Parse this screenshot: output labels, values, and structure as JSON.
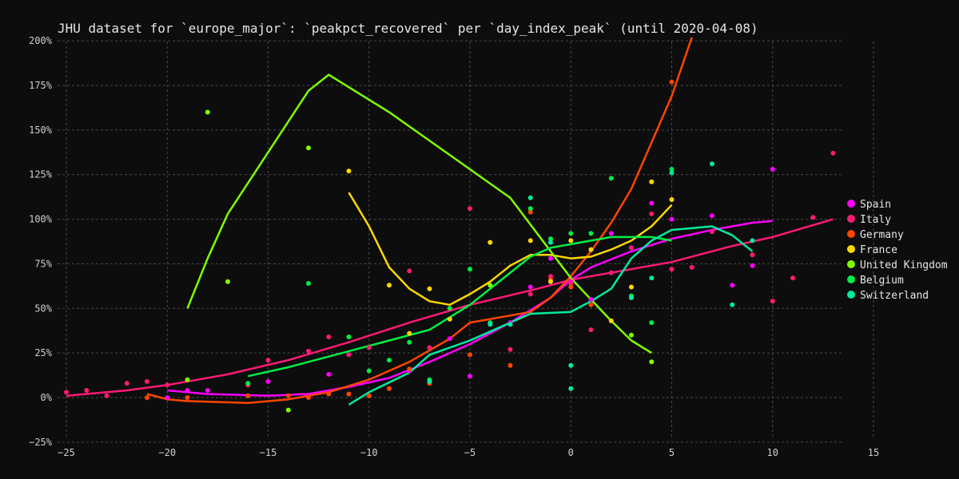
{
  "chart_data": {
    "type": "line",
    "title": "JHU dataset for `europe_major`: `peakpct_recovered` per `day_index_peak` (until 2020-04-08)",
    "xlabel": "",
    "ylabel": "",
    "xlim": [
      -25,
      15
    ],
    "ylim": [
      -30,
      205
    ],
    "xticks": [
      -25,
      -20,
      -15,
      -10,
      -5,
      0,
      5,
      10,
      15
    ],
    "yticks": [
      -25,
      0,
      25,
      50,
      75,
      100,
      125,
      150,
      175,
      200
    ],
    "ytick_suffix": "%",
    "grid": true,
    "legend_position": "right",
    "series": [
      {
        "name": "Spain",
        "color": "#ff00ff",
        "points": [
          [
            -20,
            0
          ],
          [
            -19,
            4
          ],
          [
            -18,
            4
          ],
          [
            -15,
            9
          ],
          [
            -12,
            13
          ],
          [
            -8,
            15
          ],
          [
            -6,
            33
          ],
          [
            -5,
            12
          ],
          [
            -3,
            42
          ],
          [
            -2,
            62
          ],
          [
            -1,
            78
          ],
          [
            0,
            65
          ],
          [
            1,
            55
          ],
          [
            2,
            92
          ],
          [
            3,
            84
          ],
          [
            4,
            109
          ],
          [
            5,
            100
          ],
          [
            7,
            102
          ],
          [
            8,
            63
          ],
          [
            9,
            74
          ],
          [
            10,
            128
          ]
        ],
        "line": [
          [
            -20,
            4
          ],
          [
            -18,
            2
          ],
          [
            -15,
            1
          ],
          [
            -13,
            2
          ],
          [
            -11,
            6
          ],
          [
            -9,
            11
          ],
          [
            -7,
            20
          ],
          [
            -5,
            30
          ],
          [
            -3,
            42
          ],
          [
            -1,
            56
          ],
          [
            0,
            66
          ],
          [
            1,
            73
          ],
          [
            3,
            82
          ],
          [
            5,
            89
          ],
          [
            7,
            94
          ],
          [
            9,
            98
          ],
          [
            10,
            99
          ]
        ]
      },
      {
        "name": "Italy",
        "color": "#ff1a75",
        "points": [
          [
            -25,
            3
          ],
          [
            -24,
            4
          ],
          [
            -23,
            1
          ],
          [
            -22,
            8
          ],
          [
            -21,
            9
          ],
          [
            -20,
            7
          ],
          [
            -16,
            7
          ],
          [
            -15,
            21
          ],
          [
            -13,
            26
          ],
          [
            -12,
            34
          ],
          [
            -11,
            24
          ],
          [
            -10,
            28
          ],
          [
            -8,
            71
          ],
          [
            -7,
            28
          ],
          [
            -5,
            106
          ],
          [
            -3,
            27
          ],
          [
            -2,
            58
          ],
          [
            -1,
            68
          ],
          [
            0,
            64
          ],
          [
            1,
            38
          ],
          [
            2,
            70
          ],
          [
            3,
            84
          ],
          [
            4,
            103
          ],
          [
            5,
            72
          ],
          [
            6,
            73
          ],
          [
            7,
            93
          ],
          [
            9,
            80
          ],
          [
            10,
            54
          ],
          [
            11,
            67
          ],
          [
            12,
            101
          ],
          [
            13,
            137
          ]
        ],
        "line": [
          [
            -25,
            1
          ],
          [
            -22,
            4
          ],
          [
            -20,
            7
          ],
          [
            -17,
            13
          ],
          [
            -14,
            21
          ],
          [
            -11,
            31
          ],
          [
            -8,
            42
          ],
          [
            -5,
            52
          ],
          [
            -2,
            60
          ],
          [
            0,
            66
          ],
          [
            2,
            70
          ],
          [
            5,
            76
          ],
          [
            8,
            85
          ],
          [
            10,
            90
          ],
          [
            13,
            100
          ]
        ]
      },
      {
        "name": "Germany",
        "color": "#ff4500",
        "points": [
          [
            -21,
            0
          ],
          [
            -19,
            0
          ],
          [
            -16,
            1
          ],
          [
            -14,
            1
          ],
          [
            -13,
            0
          ],
          [
            -12,
            2
          ],
          [
            -11,
            2
          ],
          [
            -10,
            1
          ],
          [
            -9,
            5
          ],
          [
            -8,
            16
          ],
          [
            -7,
            8
          ],
          [
            -5,
            24
          ],
          [
            -3,
            18
          ],
          [
            -2,
            104
          ],
          [
            -1,
            66
          ],
          [
            0,
            62
          ],
          [
            1,
            52
          ],
          [
            3,
            56
          ],
          [
            5,
            177
          ]
        ],
        "line": [
          [
            -21,
            2
          ],
          [
            -20,
            -1
          ],
          [
            -19,
            -2
          ],
          [
            -16,
            -3
          ],
          [
            -14,
            -1
          ],
          [
            -12,
            3
          ],
          [
            -10,
            10
          ],
          [
            -8,
            20
          ],
          [
            -6,
            33
          ],
          [
            -5,
            42
          ],
          [
            -4,
            44
          ],
          [
            -2,
            48
          ],
          [
            -1,
            56
          ],
          [
            0,
            68
          ],
          [
            1,
            82
          ],
          [
            2,
            98
          ],
          [
            3,
            117
          ],
          [
            4,
            143
          ],
          [
            5,
            169
          ],
          [
            6,
            202
          ]
        ]
      },
      {
        "name": "France",
        "color": "#ffd700",
        "points": [
          [
            -11,
            127
          ],
          [
            -9,
            63
          ],
          [
            -8,
            36
          ],
          [
            -7,
            61
          ],
          [
            -6,
            44
          ],
          [
            -4,
            87
          ],
          [
            -2,
            88
          ],
          [
            -1,
            65
          ],
          [
            0,
            88
          ],
          [
            1,
            83
          ],
          [
            2,
            43
          ],
          [
            3,
            62
          ],
          [
            4,
            121
          ],
          [
            5,
            111
          ]
        ],
        "line": [
          [
            -11,
            115
          ],
          [
            -10,
            96
          ],
          [
            -9,
            73
          ],
          [
            -8,
            61
          ],
          [
            -7,
            54
          ],
          [
            -6,
            52
          ],
          [
            -5,
            58
          ],
          [
            -4,
            65
          ],
          [
            -3,
            74
          ],
          [
            -2,
            80
          ],
          [
            -1,
            80
          ],
          [
            0,
            78
          ],
          [
            1,
            79
          ],
          [
            2,
            83
          ],
          [
            3,
            88
          ],
          [
            4,
            96
          ],
          [
            5,
            108
          ]
        ]
      },
      {
        "name": "United Kingdom",
        "color": "#7fff00",
        "points": [
          [
            -19,
            10
          ],
          [
            -18,
            160
          ],
          [
            -17,
            65
          ],
          [
            -14,
            -7
          ],
          [
            -13,
            140
          ],
          [
            -4,
            63
          ],
          [
            3,
            35
          ],
          [
            4,
            20
          ]
        ],
        "line": [
          [
            -19,
            50
          ],
          [
            -18,
            78
          ],
          [
            -17,
            103
          ],
          [
            -13,
            172
          ],
          [
            -12,
            181
          ],
          [
            -9,
            160
          ],
          [
            -6,
            136
          ],
          [
            -3,
            112
          ],
          [
            0,
            67
          ],
          [
            1,
            55
          ],
          [
            2,
            43
          ],
          [
            3,
            32
          ],
          [
            4,
            25
          ]
        ]
      },
      {
        "name": "Belgium",
        "color": "#00ee44",
        "points": [
          [
            -16,
            8
          ],
          [
            -13,
            64
          ],
          [
            -11,
            34
          ],
          [
            -10,
            15
          ],
          [
            -9,
            21
          ],
          [
            -8,
            31
          ],
          [
            -7,
            10
          ],
          [
            -6,
            50
          ],
          [
            -5,
            72
          ],
          [
            -4,
            42
          ],
          [
            -2,
            106
          ],
          [
            -1,
            89
          ],
          [
            0,
            92
          ],
          [
            1,
            92
          ],
          [
            2,
            123
          ],
          [
            3,
            57
          ],
          [
            4,
            42
          ],
          [
            5,
            128
          ]
        ],
        "line": [
          [
            -16,
            12
          ],
          [
            -14,
            17
          ],
          [
            -11,
            26
          ],
          [
            -9,
            32
          ],
          [
            -7,
            38
          ],
          [
            -5,
            52
          ],
          [
            -3,
            70
          ],
          [
            -2,
            79
          ],
          [
            -1,
            84
          ],
          [
            0,
            86
          ],
          [
            1,
            88
          ],
          [
            2,
            90
          ],
          [
            3,
            90
          ],
          [
            4,
            90
          ],
          [
            5,
            88
          ]
        ]
      },
      {
        "name": "Switzerland",
        "color": "#00eaa0",
        "points": [
          [
            -7,
            9
          ],
          [
            -4,
            41
          ],
          [
            -3,
            41
          ],
          [
            -2,
            112
          ],
          [
            -1,
            87
          ],
          [
            0,
            5
          ],
          [
            0,
            18
          ],
          [
            3,
            56
          ],
          [
            4,
            67
          ],
          [
            5,
            126
          ],
          [
            7,
            131
          ],
          [
            8,
            52
          ],
          [
            9,
            88
          ]
        ],
        "line": [
          [
            -11,
            -4
          ],
          [
            -10,
            3
          ],
          [
            -8,
            14
          ],
          [
            -7,
            24
          ],
          [
            -5,
            32
          ],
          [
            -4,
            37
          ],
          [
            -3,
            42
          ],
          [
            -2,
            47
          ],
          [
            0,
            48
          ],
          [
            1,
            54
          ],
          [
            2,
            61
          ],
          [
            3,
            78
          ],
          [
            4,
            88
          ],
          [
            5,
            94
          ],
          [
            7,
            96
          ],
          [
            8,
            91
          ],
          [
            9,
            82
          ]
        ]
      }
    ]
  }
}
